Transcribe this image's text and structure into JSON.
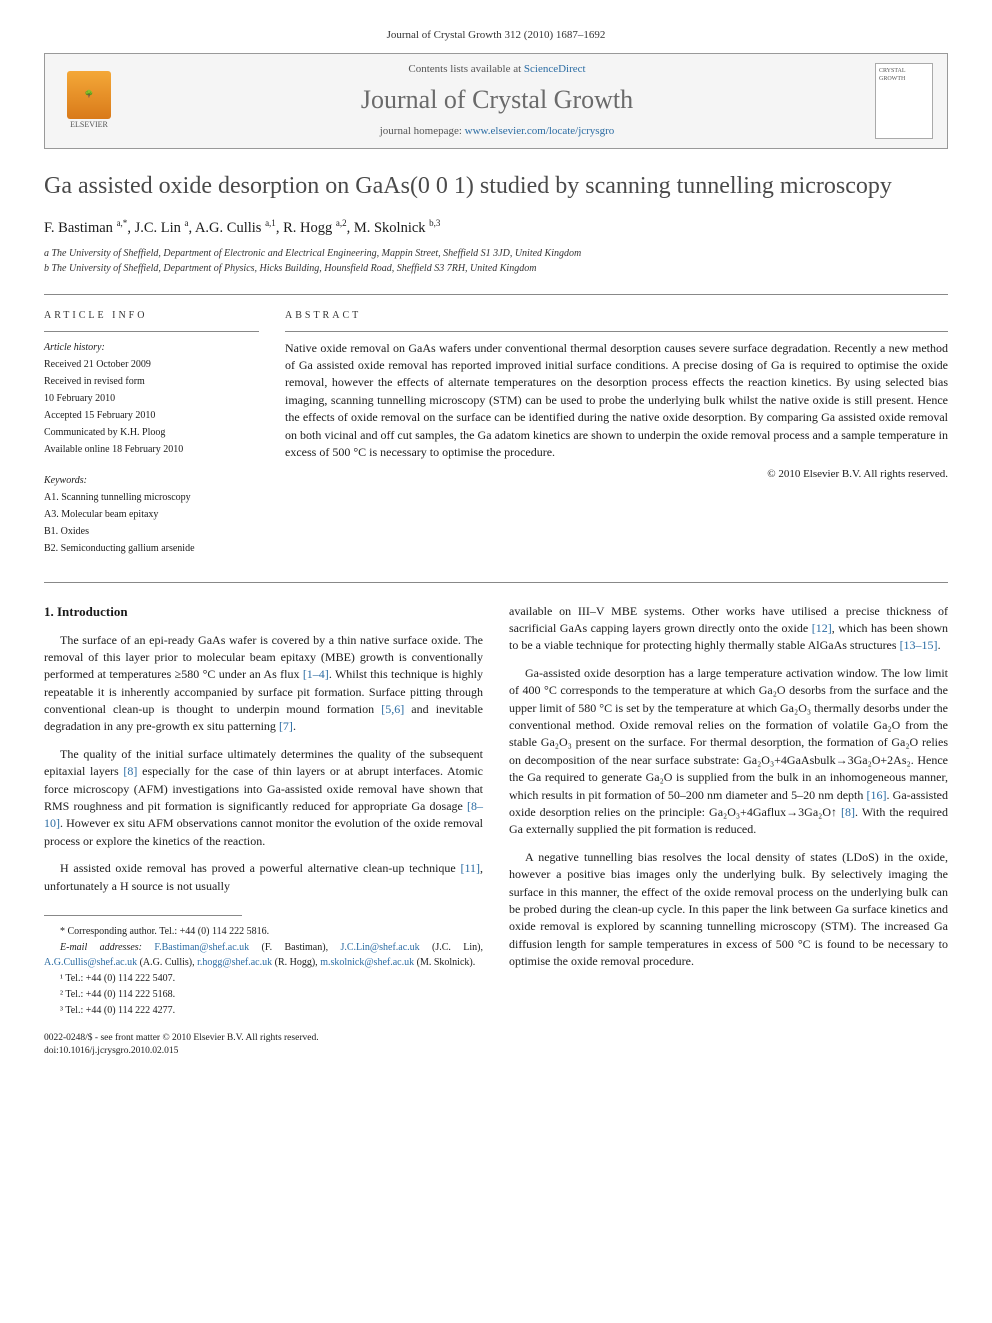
{
  "top_meta": "Journal of Crystal Growth 312 (2010) 1687–1692",
  "header": {
    "contents_prefix": "Contents lists available at ",
    "contents_link": "ScienceDirect",
    "journal_name": "Journal of Crystal Growth",
    "homepage_prefix": "journal homepage: ",
    "homepage_link": "www.elsevier.com/locate/jcrysgro",
    "publisher_label": "ELSEVIER",
    "cover_label": "CRYSTAL GROWTH"
  },
  "title": "Ga assisted oxide desorption on GaAs(0 0 1) studied by scanning tunnelling microscopy",
  "authors_html": "F. Bastiman <sup>a,*</sup>, J.C. Lin <sup>a</sup>, A.G. Cullis <sup>a,1</sup>, R. Hogg <sup>a,2</sup>, M. Skolnick <sup>b,3</sup>",
  "affiliations": [
    "a The University of Sheffield, Department of Electronic and Electrical Engineering, Mappin Street, Sheffield S1 3JD, United Kingdom",
    "b The University of Sheffield, Department of Physics, Hicks Building, Hounsfield Road, Sheffield S3 7RH, United Kingdom"
  ],
  "article_info_label": "ARTICLE INFO",
  "abstract_label": "ABSTRACT",
  "history_head": "Article history:",
  "history": [
    "Received 21 October 2009",
    "Received in revised form",
    "10 February 2010",
    "Accepted 15 February 2010",
    "Communicated by K.H. Ploog",
    "Available online 18 February 2010"
  ],
  "keywords_head": "Keywords:",
  "keywords": [
    "A1. Scanning tunnelling microscopy",
    "A3. Molecular beam epitaxy",
    "B1. Oxides",
    "B2. Semiconducting gallium arsenide"
  ],
  "abstract": "Native oxide removal on GaAs wafers under conventional thermal desorption causes severe surface degradation. Recently a new method of Ga assisted oxide removal has reported improved initial surface conditions. A precise dosing of Ga is required to optimise the oxide removal, however the effects of alternate temperatures on the desorption process effects the reaction kinetics. By using selected bias imaging, scanning tunnelling microscopy (STM) can be used to probe the underlying bulk whilst the native oxide is still present. Hence the effects of oxide removal on the surface can be identified during the native oxide desorption. By comparing Ga assisted oxide removal on both vicinal and off cut samples, the Ga adatom kinetics are shown to underpin the oxide removal process and a sample temperature in excess of 500 °C is necessary to optimise the procedure.",
  "copyright": "© 2010 Elsevier B.V. All rights reserved.",
  "section1_head": "1. Introduction",
  "left_paras": [
    "The surface of an epi-ready GaAs wafer is covered by a thin native surface oxide. The removal of this layer prior to molecular beam epitaxy (MBE) growth is conventionally performed at temperatures ≥580 °C under an As flux [1–4]. Whilst this technique is highly repeatable it is inherently accompanied by surface pit formation. Surface pitting through conventional clean-up is thought to underpin mound formation [5,6] and inevitable degradation in any pre-growth ex situ patterning [7].",
    "The quality of the initial surface ultimately determines the quality of the subsequent epitaxial layers [8] especially for the case of thin layers or at abrupt interfaces. Atomic force microscopy (AFM) investigations into Ga-assisted oxide removal have shown that RMS roughness and pit formation is significantly reduced for appropriate Ga dosage [8–10]. However ex situ AFM observations cannot monitor the evolution of the oxide removal process or explore the kinetics of the reaction.",
    "H assisted oxide removal has proved a powerful alternative clean-up technique [11], unfortunately a H source is not usually"
  ],
  "right_paras": [
    "available on III–V MBE systems. Other works have utilised a precise thickness of sacrificial GaAs capping layers grown directly onto the oxide [12], which has been shown to be a viable technique for protecting highly thermally stable AlGaAs structures [13–15].",
    "Ga-assisted oxide desorption has a large temperature activation window. The low limit of 400 °C corresponds to the temperature at which Ga₂O desorbs from the surface and the upper limit of 580 °C is set by the temperature at which Ga₂O₃ thermally desorbs under the conventional method. Oxide removal relies on the formation of volatile Ga₂O from the stable Ga₂O₃ present on the surface. For thermal desorption, the formation of Ga₂O relies on decomposition of the near surface substrate: Ga₂O₃+4GaAsbulk→3Ga₂O+2As₂. Hence the Ga required to generate Ga₂O is supplied from the bulk in an inhomogeneous manner, which results in pit formation of 50–200 nm diameter and 5–20 nm depth [16]. Ga-assisted oxide desorption relies on the principle: Ga₂O₃+4Gaflux→3Ga₂O↑ [8]. With the required Ga externally supplied the pit formation is reduced.",
    "A negative tunnelling bias resolves the local density of states (LDoS) in the oxide, however a positive bias images only the underlying bulk. By selectively imaging the surface in this manner, the effect of the oxide removal process on the underlying bulk can be probed during the clean-up cycle. In this paper the link between Ga surface kinetics and oxide removal is explored by scanning tunnelling microscopy (STM). The increased Ga diffusion length for sample temperatures in excess of 500 °C is found to be necessary to optimise the oxide removal procedure."
  ],
  "footnotes": {
    "corr": "* Corresponding author. Tel.: +44 (0) 114 222 5816.",
    "email_label": "E-mail addresses: ",
    "emails": "F.Bastiman@shef.ac.uk (F. Bastiman), J.C.Lin@shef.ac.uk (J.C. Lin), A.G.Cullis@shef.ac.uk (A.G. Cullis), r.hogg@shef.ac.uk (R. Hogg), m.skolnick@shef.ac.uk (M. Skolnick).",
    "tel1": "¹ Tel.: +44 (0) 114 222 5407.",
    "tel2": "² Tel.: +44 (0) 114 222 5168.",
    "tel3": "³ Tel.: +44 (0) 114 222 4277."
  },
  "bottom": {
    "line1": "0022-0248/$ - see front matter © 2010 Elsevier B.V. All rights reserved.",
    "line2": "doi:10.1016/j.jcrysgro.2010.02.015"
  },
  "colors": {
    "link": "#2b6ca3",
    "title_gray": "#4a4a4a",
    "rule": "#888888",
    "header_bg": "#f5f5f5"
  }
}
